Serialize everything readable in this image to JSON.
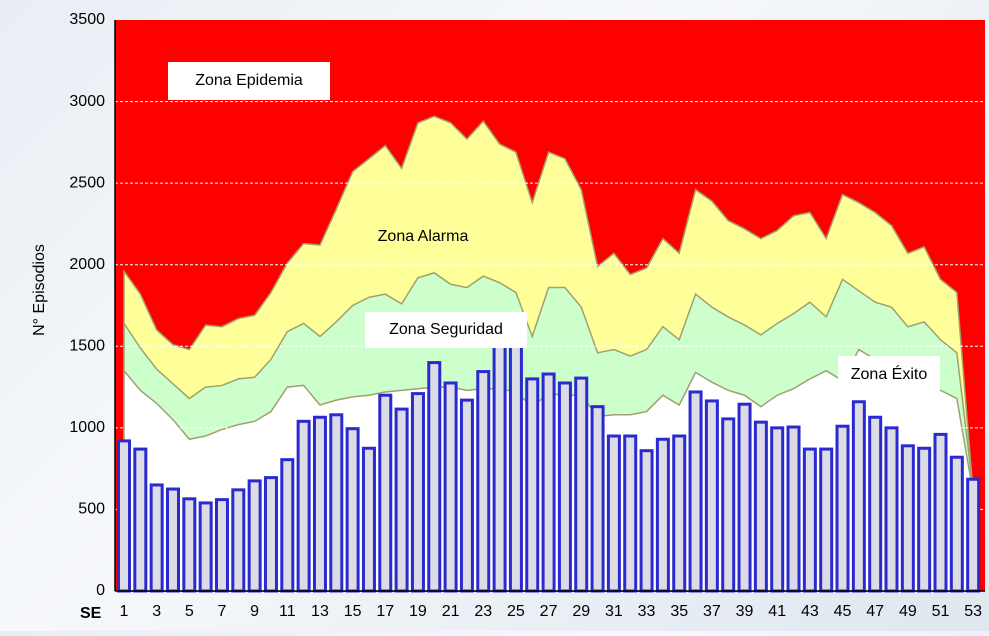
{
  "chart_data": {
    "type": "bar",
    "y_label": "N° Episodios",
    "x_label": "SE",
    "categories": [
      1,
      null,
      3,
      null,
      5,
      null,
      7,
      null,
      9,
      null,
      11,
      null,
      13,
      null,
      15,
      null,
      17,
      null,
      19,
      null,
      21,
      null,
      23,
      null,
      25,
      null,
      27,
      null,
      29,
      null,
      31,
      null,
      33,
      null,
      35,
      null,
      37,
      null,
      39,
      null,
      41,
      null,
      43,
      null,
      45,
      null,
      47,
      null,
      49,
      null,
      51,
      null,
      53
    ],
    "values": [
      920,
      870,
      650,
      625,
      565,
      540,
      560,
      620,
      675,
      695,
      805,
      1040,
      1065,
      1080,
      995,
      875,
      1200,
      1115,
      1210,
      1400,
      1275,
      1170,
      1345,
      1600,
      1600,
      1300,
      1330,
      1275,
      1305,
      1130,
      950,
      950,
      860,
      930,
      950,
      1220,
      1165,
      1055,
      1145,
      1035,
      1000,
      1005,
      870,
      870,
      1010,
      1160,
      1065,
      1000,
      890,
      875,
      960,
      820,
      685
    ],
    "color": "#dcdce4",
    "edge_color": "#2a2ad0",
    "background_color": "#ff0000",
    "bands": [
      {
        "color": "#ffff99",
        "values": [
          1960,
          1820,
          1600,
          1510,
          1480,
          1630,
          1620,
          1670,
          1690,
          1830,
          2010,
          2130,
          2120,
          2340,
          2570,
          2650,
          2730,
          2590,
          2870,
          2910,
          2870,
          2770,
          2880,
          2740,
          2690,
          2380,
          2690,
          2650,
          2460,
          1990,
          2070,
          1940,
          1980,
          2160,
          2070,
          2460,
          2390,
          2270,
          2220,
          2160,
          2210,
          2300,
          2320,
          2160,
          2430,
          2380,
          2320,
          2240,
          2070,
          2110,
          1910,
          1830,
          600
        ]
      },
      {
        "color": "#ccffcc",
        "values": [
          1640,
          1490,
          1360,
          1270,
          1180,
          1250,
          1260,
          1300,
          1310,
          1420,
          1590,
          1640,
          1560,
          1650,
          1750,
          1800,
          1820,
          1760,
          1920,
          1950,
          1880,
          1860,
          1930,
          1890,
          1830,
          1560,
          1860,
          1860,
          1740,
          1460,
          1480,
          1440,
          1480,
          1620,
          1540,
          1820,
          1740,
          1680,
          1630,
          1570,
          1640,
          1700,
          1770,
          1680,
          1910,
          1840,
          1770,
          1740,
          1620,
          1650,
          1540,
          1460,
          620
        ]
      },
      {
        "color": "#ffffff",
        "values": [
          1350,
          1230,
          1150,
          1050,
          930,
          950,
          990,
          1020,
          1040,
          1100,
          1250,
          1260,
          1140,
          1170,
          1190,
          1200,
          1220,
          1230,
          1240,
          1250,
          1250,
          1230,
          1240,
          1240,
          1220,
          1130,
          1210,
          1200,
          1200,
          1070,
          1080,
          1080,
          1100,
          1200,
          1140,
          1340,
          1280,
          1230,
          1200,
          1130,
          1200,
          1240,
          1300,
          1350,
          1290,
          1480,
          1420,
          1360,
          1290,
          1280,
          1230,
          1180,
          600
        ]
      }
    ],
    "zone_labels": [
      "Zona Epidemia",
      "Zona Alarma",
      "Zona Seguridad",
      "Zona Éxito"
    ],
    "ylim": [
      0,
      3500
    ],
    "yticks": [
      0,
      500,
      1000,
      1500,
      2000,
      2500,
      3000,
      3500
    ],
    "grid": true
  }
}
